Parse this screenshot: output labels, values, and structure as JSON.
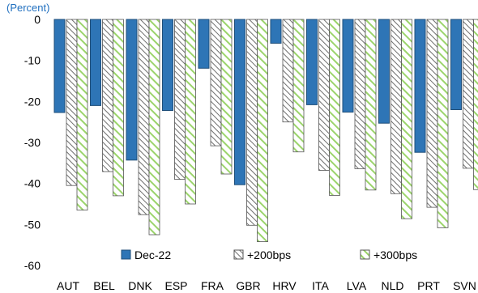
{
  "chart_data": {
    "type": "bar",
    "unit_label": "(Percent)",
    "categories": [
      "AUT",
      "BEL",
      "DNK",
      "ESP",
      "FRA",
      "GBR",
      "HRV",
      "ITA",
      "LVA",
      "NLD",
      "PRT",
      "SVN"
    ],
    "series": [
      {
        "name": "Dec-22",
        "values": [
          -22.7,
          -21.0,
          -34.3,
          -22.2,
          -11.9,
          -40.3,
          -5.8,
          -20.8,
          -22.6,
          -25.3,
          -32.4,
          -22.0
        ]
      },
      {
        "name": "+200bps",
        "values": [
          -40.5,
          -37.1,
          -47.6,
          -39.0,
          -30.8,
          -50.2,
          -25.0,
          -36.8,
          -36.4,
          -42.5,
          -45.8,
          -36.3
        ]
      },
      {
        "name": "+300bps",
        "values": [
          -46.5,
          -43.0,
          -52.5,
          -45.0,
          -37.7,
          -54.2,
          -32.3,
          -42.9,
          -41.6,
          -48.6,
          -50.8,
          -41.5
        ]
      }
    ],
    "ylim": [
      -60,
      0
    ],
    "yticks": [
      "0",
      "-10",
      "-20",
      "-30",
      "-40",
      "-50",
      "-60"
    ],
    "ytick_values": [
      0,
      -10,
      -20,
      -30,
      -40,
      -50,
      -60
    ],
    "grid": false,
    "legend_position": "bottom-inside",
    "colors": {
      "dec22_fill": "#2e75b6",
      "dec22_edge": "#1f4e79",
      "hatch_gray": "#6e6e6e",
      "hatch_green": "#9bd46b",
      "axis_text": "#000000",
      "unit_text": "#1f6fbf"
    }
  }
}
